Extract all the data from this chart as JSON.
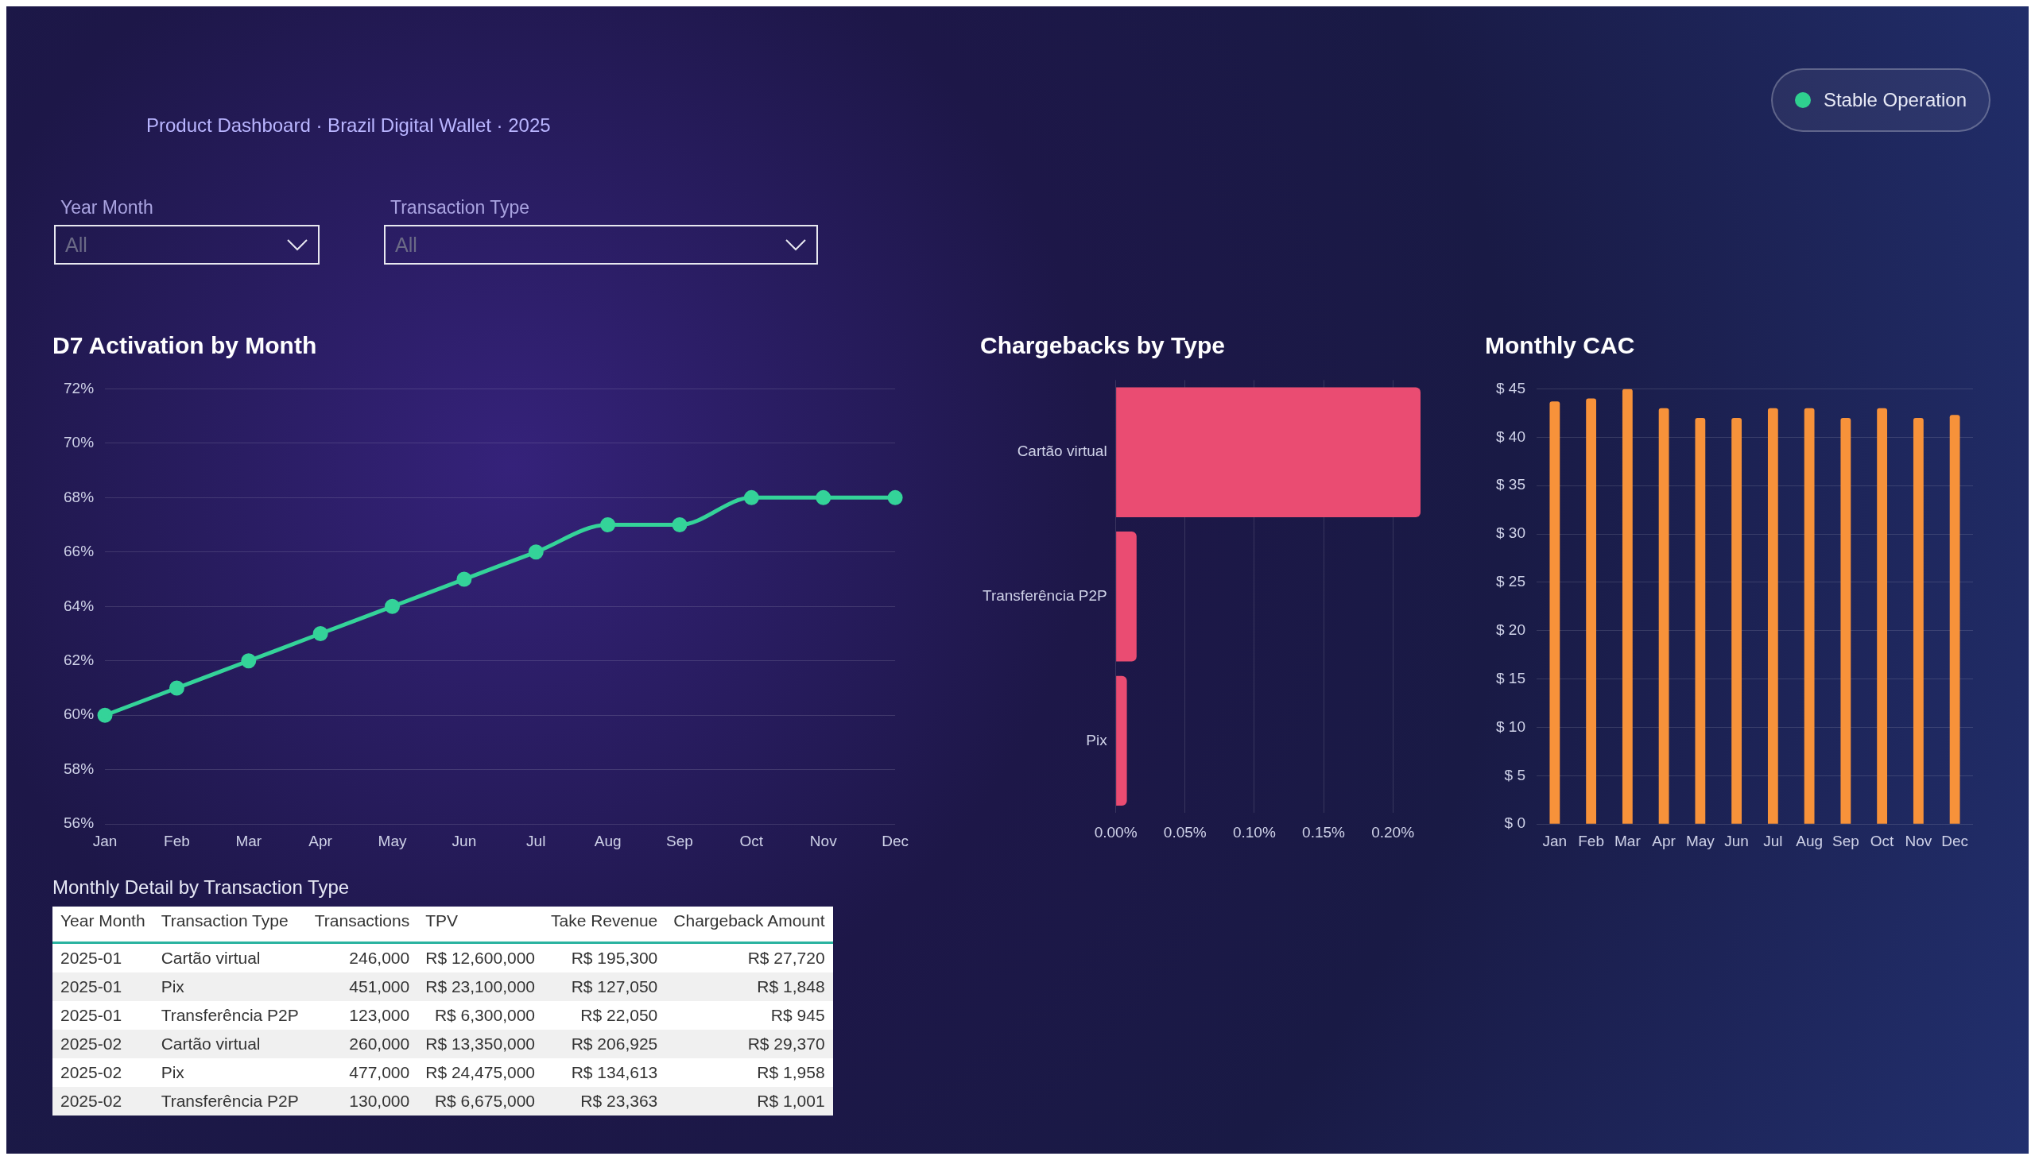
{
  "chart_data": [
    {
      "type": "other",
      "subtitle": "Product Dashboard · Brazil Digital Wallet · 2025",
      "annotations": [
        "Stable Operation",
        "Year Month",
        "All",
        "Transaction Type",
        "All"
      ]
    },
    {
      "type": "line",
      "title": "D7 Activation by Month",
      "categories": [
        "Jan",
        "Feb",
        "Mar",
        "Apr",
        "May",
        "Jun",
        "Jul",
        "Aug",
        "Sep",
        "Oct",
        "Nov",
        "Dec"
      ],
      "series": [
        {
          "color": "#34d399",
          "values": [
            60,
            61,
            62,
            63,
            64,
            65,
            66,
            67,
            67,
            68,
            68,
            68
          ]
        }
      ],
      "ylim": [
        56,
        72
      ],
      "yticks": [
        {
          "value": 56,
          "label": "56%"
        },
        {
          "value": 58,
          "label": "58%"
        },
        {
          "value": 60,
          "label": "60%"
        },
        {
          "value": 62,
          "label": "62%"
        },
        {
          "value": 64,
          "label": "64%"
        },
        {
          "value": 66,
          "label": "66%"
        },
        {
          "value": 68,
          "label": "68%"
        },
        {
          "value": 70,
          "label": "70%"
        },
        {
          "value": 72,
          "label": "72%"
        }
      ],
      "grid": "y",
      "marker": "circle"
    },
    {
      "type": "bar",
      "orientation": "horizontal",
      "title": "Chargebacks by Type",
      "categories": [
        "Cartão virtual",
        "Transferência P2P",
        "Pix"
      ],
      "values": [
        0.22,
        0.015,
        0.008
      ],
      "color": "#ea4c72",
      "xlim": [
        0,
        0.22
      ],
      "xticks": [
        {
          "value": 0,
          "label": "0.00%"
        },
        {
          "value": 0.05,
          "label": "0.05%"
        },
        {
          "value": 0.1,
          "label": "0.10%"
        },
        {
          "value": 0.15,
          "label": "0.15%"
        },
        {
          "value": 0.2,
          "label": "0.20%"
        }
      ],
      "grid": "x"
    },
    {
      "type": "bar",
      "title": "Monthly CAC",
      "categories": [
        "Jan",
        "Feb",
        "Mar",
        "Apr",
        "May",
        "Jun",
        "Jul",
        "Aug",
        "Sep",
        "Oct",
        "Nov",
        "Dec"
      ],
      "values": [
        43.7,
        44,
        45,
        43,
        42,
        42,
        43,
        43,
        42,
        43,
        42,
        42.3
      ],
      "color": "#f7923a",
      "ylim": [
        0,
        45
      ],
      "yticks": [
        {
          "value": 0,
          "label": "$ 0"
        },
        {
          "value": 5,
          "label": "$ 5"
        },
        {
          "value": 10,
          "label": "$ 10"
        },
        {
          "value": 15,
          "label": "$ 15"
        },
        {
          "value": 20,
          "label": "$ 20"
        },
        {
          "value": 25,
          "label": "$ 25"
        },
        {
          "value": 30,
          "label": "$ 30"
        },
        {
          "value": 35,
          "label": "$ 35"
        },
        {
          "value": 40,
          "label": "$ 40"
        },
        {
          "value": 45,
          "label": "$ 45"
        }
      ],
      "grid": "y"
    },
    {
      "type": "other",
      "title": "Monthly Detail by Transaction Type",
      "categories": [
        "Year Month",
        "Transaction Type",
        "Transactions",
        "TPV",
        "Take Revenue",
        "Chargeback Amount"
      ],
      "annotations": [
        "2025-01",
        "Cartão virtual",
        "246,000",
        "R$ 12,600,000",
        "R$ 195,300",
        "R$ 27,720",
        "2025-01",
        "Pix",
        "451,000",
        "R$ 23,100,000",
        "R$ 127,050",
        "R$ 1,848",
        "2025-01",
        "Transferência P2P",
        "123,000",
        "R$ 6,300,000",
        "R$ 22,050",
        "R$ 945",
        "2025-02",
        "Cartão virtual",
        "260,000",
        "R$ 13,350,000",
        "R$ 206,925",
        "R$ 29,370",
        "2025-02",
        "Pix",
        "477,000",
        "R$ 24,475,000",
        "R$ 134,613",
        "R$ 1,958",
        "2025-02",
        "Transferência P2P",
        "130,000",
        "R$ 6,675,000",
        "R$ 23,363",
        "R$ 1,001"
      ]
    }
  ]
}
